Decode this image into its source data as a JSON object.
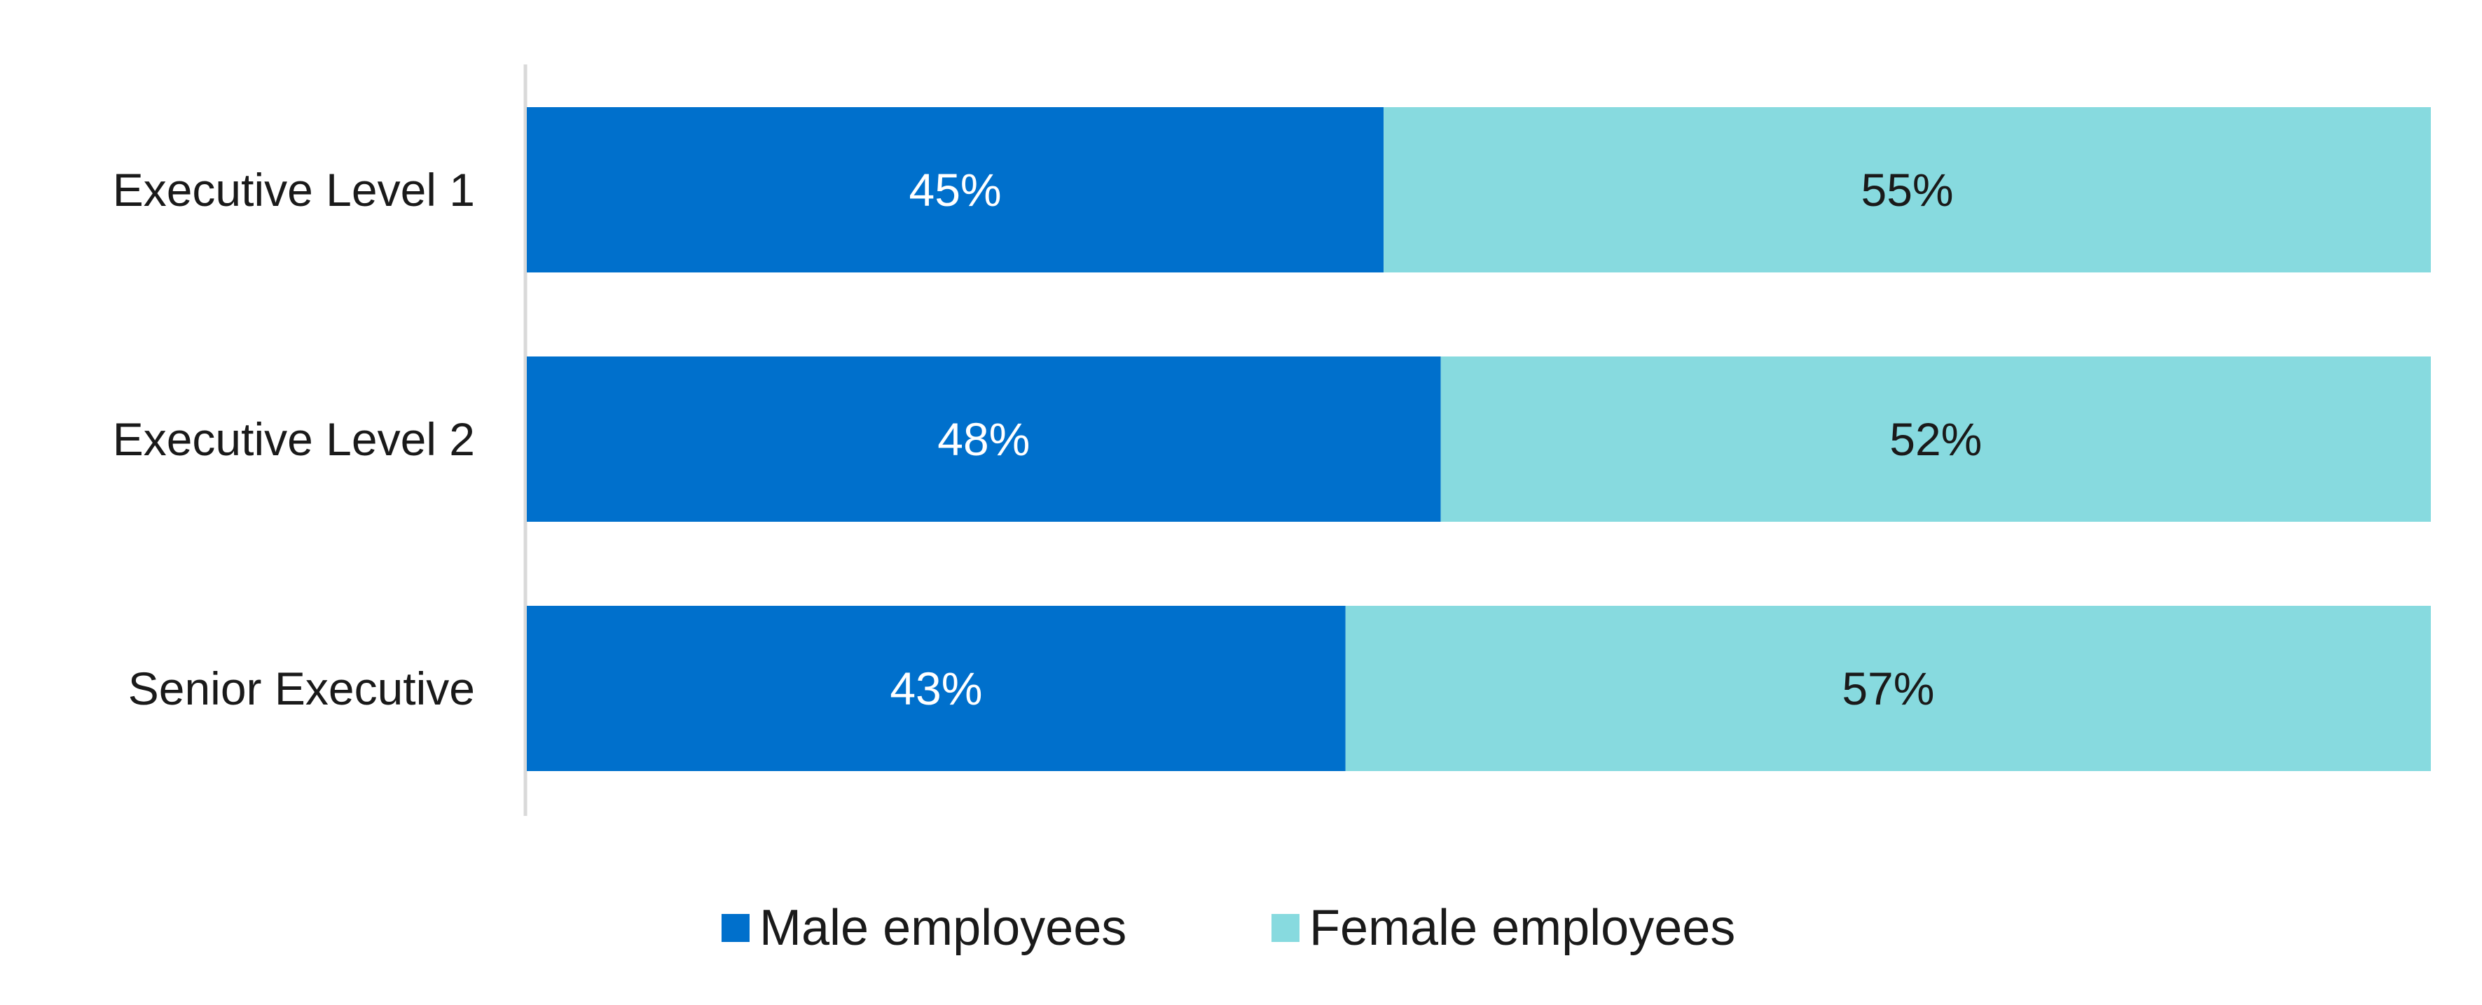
{
  "chart_data": {
    "type": "bar",
    "orientation": "horizontal",
    "stacked": true,
    "percent_stacked": true,
    "categories": [
      "Executive Level 1",
      "Executive Level 2",
      "Senior Executive"
    ],
    "series": [
      {
        "name": "Male employees",
        "values": [
          45,
          48,
          43
        ],
        "labels": [
          "45%",
          "48%",
          "43%"
        ],
        "color": "#0070CC",
        "label_color": "#ffffff"
      },
      {
        "name": "Female employees",
        "values": [
          55,
          52,
          57
        ],
        "labels": [
          "55%",
          "52%",
          "57%"
        ],
        "color": "#87DADF",
        "label_color": "#1a1a1a"
      }
    ],
    "xlim": [
      0,
      100
    ],
    "grid": false,
    "legend_position": "bottom",
    "title": "",
    "xlabel": "",
    "ylabel": ""
  }
}
